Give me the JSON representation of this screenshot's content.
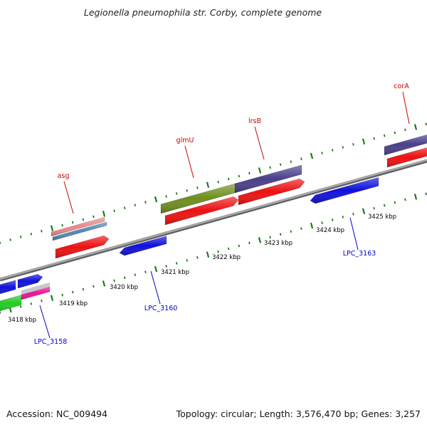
{
  "title": "Legionella pneumophila str. Corby, complete genome",
  "footer": {
    "accession": "Accession: NC_009494",
    "summary": "Topology: circular; Length: 3,576,470 bp; Genes: 3,257"
  },
  "colors": {
    "backbone": "#8a8a8a",
    "tick": "#1f7a1f",
    "forward_label": "#cc0000",
    "reverse_label": "#0000cc"
  },
  "ticks": [
    {
      "label": "3418 kbp"
    },
    {
      "label": "3419 kbp"
    },
    {
      "label": "3420 kbp"
    },
    {
      "label": "3421 kbp"
    },
    {
      "label": "3422 kbp"
    },
    {
      "label": "3423 kbp"
    },
    {
      "label": "3424 kbp"
    },
    {
      "label": "3425 kbp"
    }
  ],
  "gene_labels": [
    {
      "name": "asg",
      "strand": "forward"
    },
    {
      "name": "glmU",
      "strand": "forward"
    },
    {
      "name": "lrsB",
      "strand": "forward"
    },
    {
      "name": "corA",
      "strand": "forward"
    },
    {
      "name": "LPC_3158",
      "strand": "reverse"
    },
    {
      "name": "LPC_3160",
      "strand": "reverse"
    },
    {
      "name": "LPC_3163",
      "strand": "reverse"
    }
  ],
  "features": [
    {
      "name": "gene-cds-left-blue-upper",
      "color": "#1010dd",
      "track": "reverse"
    },
    {
      "name": "gene-cds-left-blue-lower",
      "color": "#1010dd",
      "track": "reverse"
    },
    {
      "name": "gene-cds-green",
      "color": "#22cc22",
      "track": "reverse"
    },
    {
      "name": "gene-cds-magenta",
      "color": "#ee1199",
      "track": "reverse"
    },
    {
      "name": "gene-cds-asg-pink",
      "color": "#e88a8a",
      "track": "forward"
    },
    {
      "name": "gene-cds-asg-steel",
      "color": "#4f86b8",
      "track": "forward"
    },
    {
      "name": "gene-cds-asg-red",
      "color": "#ee1111",
      "track": "forward"
    },
    {
      "name": "gene-cds-lpc3160-blue",
      "color": "#1010dd",
      "track": "reverse"
    },
    {
      "name": "gene-cds-glmu-olive",
      "color": "#6e8f1e",
      "track": "forward"
    },
    {
      "name": "gene-cds-glmu-red",
      "color": "#ee1111",
      "track": "forward"
    },
    {
      "name": "gene-cds-lrsb-purple",
      "color": "#4a3f8a",
      "track": "forward"
    },
    {
      "name": "gene-cds-lrsb-red",
      "color": "#ee1111",
      "track": "forward"
    },
    {
      "name": "gene-cds-lpc3163-blue",
      "color": "#1010dd",
      "track": "reverse"
    },
    {
      "name": "gene-cds-cora-purple",
      "color": "#4a3f8a",
      "track": "forward"
    },
    {
      "name": "gene-cds-cora-red",
      "color": "#ee1111",
      "track": "forward"
    }
  ]
}
